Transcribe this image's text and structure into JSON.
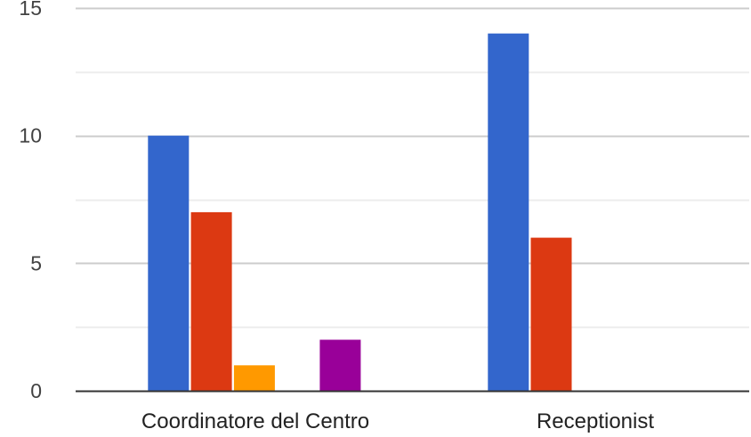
{
  "chart_data": {
    "type": "bar",
    "categories": [
      "Coordinatore del Centro",
      "Receptionist"
    ],
    "series": [
      {
        "values": [
          10,
          14
        ],
        "color": "#3366cc"
      },
      {
        "values": [
          7,
          6
        ],
        "color": "#dc3912"
      },
      {
        "values": [
          1,
          0
        ],
        "color": "#ff9900"
      },
      {
        "values": [
          0,
          0
        ],
        "color": "#109618"
      },
      {
        "values": [
          2,
          0
        ],
        "color": "#990099"
      }
    ],
    "yticks": [
      "0",
      "5",
      "10",
      "15"
    ],
    "ylim": [
      0,
      15
    ],
    "grid": true,
    "minor_grid": true,
    "legend": "none"
  }
}
